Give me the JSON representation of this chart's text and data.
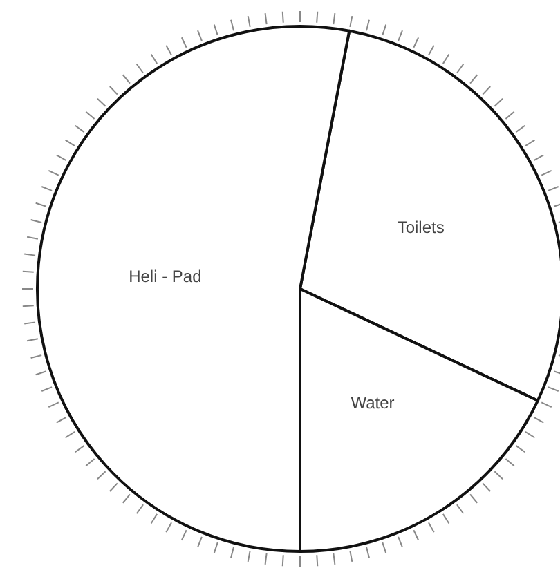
{
  "chart_data": {
    "type": "pie",
    "categories": [
      "Toilets",
      "Water",
      "Heli - Pad"
    ],
    "values": [
      29,
      18,
      53
    ],
    "colors": [
      "#ffffff",
      "#ffffff",
      "#ffffff"
    ]
  }
}
